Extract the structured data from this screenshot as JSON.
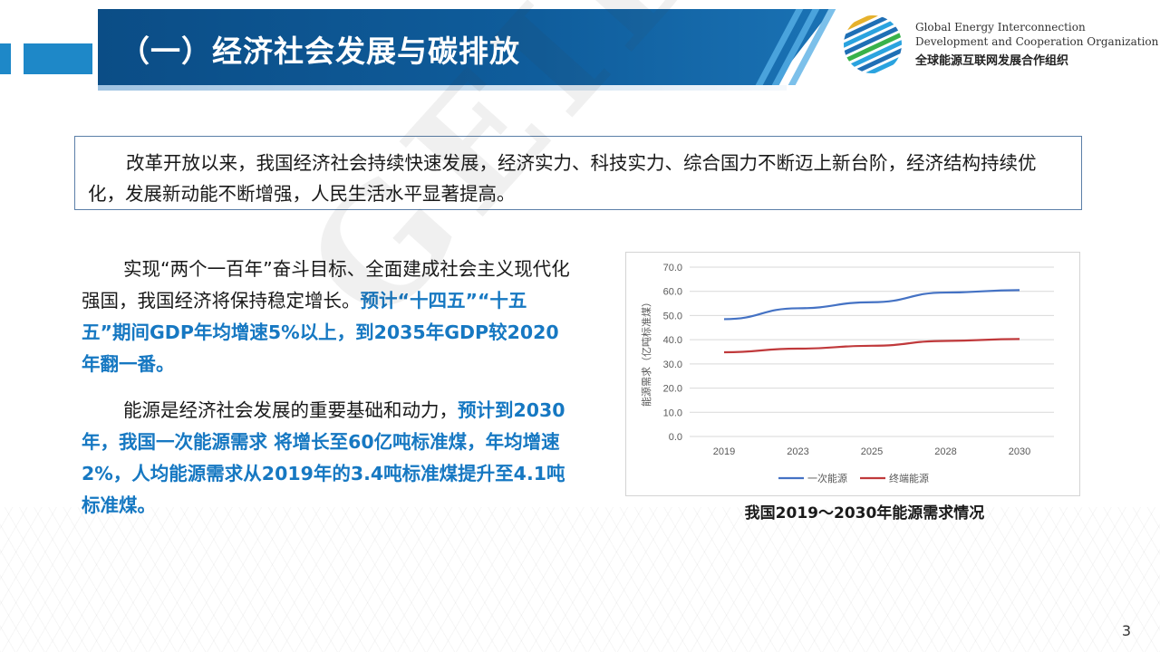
{
  "header": {
    "title": "（一）经济社会发展与碳排放",
    "org_en_line1": "Global Energy Interconnection",
    "org_en_line2": "Development and Cooperation Organization",
    "org_zh": "全球能源互联网发展合作组织",
    "logo_icon": "globe-logo-icon"
  },
  "intro": {
    "text": "改革开放以来，我国经济社会持续快速发展，经济实力、科技实力、综合国力不断迈上新台阶，经济结构持续优化，发展新动能不断增强，人民生活水平显著提高。"
  },
  "left": {
    "p1_plain": "实现“两个一百年”奋斗目标、全面建成社会主义现代化强国，我国经济将保持稳定增长。",
    "p1_highlight": "预计“十四五”“十五五”期间GDP年均增速5%以上，到2035年GDP较2020年翻一番。",
    "p2_plain": "能源是经济社会发展的重要基础和动力，",
    "p2_highlight": "预计到2030年，我国一次能源需求 将增长至60亿吨标准煤，年均增速2%，人均能源需求从2019年的3.4吨标准煤提升至4.1吨标准煤。"
  },
  "chart_caption": "我国2019～2030年能源需求情况",
  "watermark": "GEIDCO",
  "page_number": "3",
  "colors": {
    "header_blue": "#0f5d9c",
    "highlight_blue": "#1678c2",
    "series_primary": "#4472c4",
    "series_final": "#c0393b"
  },
  "chart_data": {
    "type": "line",
    "x": [
      "2019",
      "2023",
      "2025",
      "2028",
      "2030"
    ],
    "ylabel": "能源需求（亿吨标准煤）",
    "xlabel": "",
    "ylim": [
      0,
      70
    ],
    "yticks": [
      "0.0",
      "10.0",
      "20.0",
      "30.0",
      "40.0",
      "50.0",
      "60.0",
      "70.0"
    ],
    "grid": true,
    "legend": "bottom",
    "series": [
      {
        "name": "一次能源",
        "values": [
          48.5,
          53.0,
          55.5,
          59.5,
          60.5
        ],
        "color": "#4472c4"
      },
      {
        "name": "终端能源",
        "values": [
          34.8,
          36.3,
          37.5,
          39.5,
          40.3
        ],
        "color": "#c0393b"
      }
    ]
  }
}
